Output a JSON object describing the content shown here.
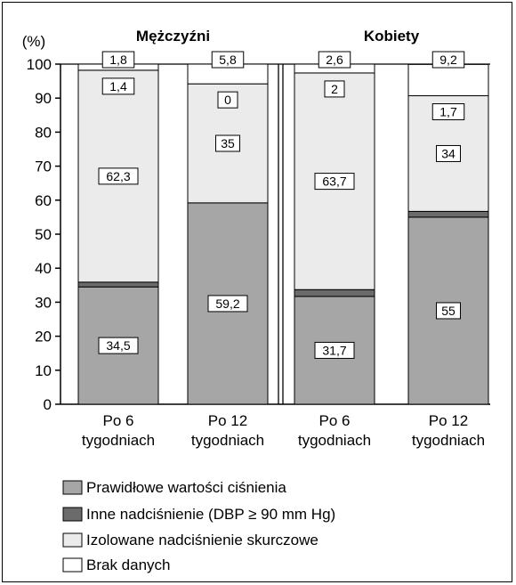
{
  "chart_data": {
    "type": "bar",
    "stacked": true,
    "y_unit_label": "(%)",
    "ylim": [
      0,
      100
    ],
    "yticks": [
      0,
      10,
      20,
      30,
      40,
      50,
      60,
      70,
      80,
      90,
      100
    ],
    "groups": [
      {
        "title": "Mężczyźni",
        "categories": [
          "Po 6 tygodniach",
          "Po 12 tygodniach"
        ]
      },
      {
        "title": "Kobiety",
        "categories": [
          "Po 6 tygodniach",
          "Po 12 tygodniach"
        ]
      }
    ],
    "category_lines": [
      [
        "Po 6",
        "tygodniach"
      ],
      [
        "Po 12",
        "tygodniach"
      ],
      [
        "Po 6",
        "tygodniach"
      ],
      [
        "Po 12",
        "tygodniach"
      ]
    ],
    "series": [
      {
        "name": "Prawidłowe wartości ciśnienia",
        "color": "#a6a6a6",
        "values": [
          34.5,
          59.2,
          31.7,
          55
        ],
        "labels": [
          "34,5",
          "59,2",
          "31,7",
          "55"
        ]
      },
      {
        "name": "Inne nadciśnienie (DBP ≥ 90 mm Hg)",
        "color": "#6b6b6b",
        "values": [
          1.4,
          0,
          2,
          1.7
        ],
        "labels": [
          "1,4",
          "0",
          "2",
          "1,7"
        ]
      },
      {
        "name": "Izolowane nadciśnienie skurczowe",
        "color": "#ebebeb",
        "values": [
          62.3,
          35,
          63.7,
          34
        ],
        "labels": [
          "62,3",
          "35",
          "63,7",
          "34"
        ]
      },
      {
        "name": "Brak danych",
        "color": "#ffffff",
        "values": [
          1.8,
          5.8,
          2.6,
          9.2
        ],
        "labels": [
          "1,8",
          "5,8",
          "2,6",
          "9,2"
        ]
      }
    ],
    "legend_position": "bottom-left",
    "grid": false
  }
}
